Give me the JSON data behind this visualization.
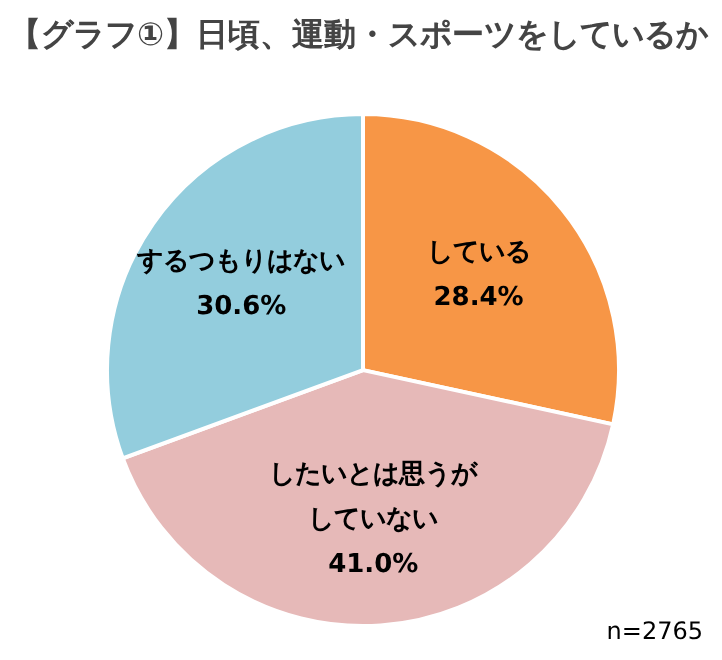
{
  "chart_data": {
    "type": "pie",
    "title": "【グラフ①】日頃、運動・スポーツをしているか",
    "categories": [
      "している",
      "したいとは思うがしていない",
      "するつもりはない"
    ],
    "values": [
      28.4,
      41.0,
      30.6
    ],
    "value_labels": [
      "28.4%",
      "41.0%",
      "30.6%"
    ],
    "colors": [
      "#f79646",
      "#e6b9b8",
      "#93cddd"
    ],
    "annotations": [
      "n=2765"
    ]
  }
}
